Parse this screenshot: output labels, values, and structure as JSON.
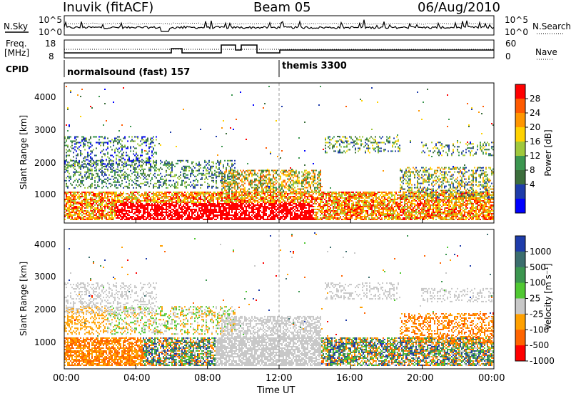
{
  "header": {
    "station": "Inuvik (fitACF)",
    "beam": "Beam 05",
    "date": "06/Aug/2010"
  },
  "left_labels": {
    "nsky": "N.Sky",
    "freq": "Freq.",
    "freq_unit": "[MHz]",
    "cpid": "CPID"
  },
  "right_labels": {
    "nsearch": "N.Search",
    "nave": "Nave"
  },
  "time_axis": {
    "label": "Time UT",
    "ticks": [
      "00:00",
      "04:00",
      "08:00",
      "12:00",
      "16:00",
      "20:00",
      "00:00"
    ]
  },
  "chart_data": [
    {
      "type": "line",
      "name": "noise",
      "left_ticks": [
        "10^5",
        "10^0"
      ],
      "right_ticks": [
        "10^5",
        "10^0"
      ]
    },
    {
      "type": "line",
      "name": "frequency-nave",
      "left_ticks": [
        "18",
        "8"
      ],
      "right_ticks": [
        "60",
        "0"
      ]
    },
    {
      "type": "table",
      "name": "cpid",
      "segments": [
        {
          "label": "normalsound (fast) 157",
          "start_hour": 0
        },
        {
          "label": "themis 3300",
          "start_hour": 12
        }
      ]
    },
    {
      "type": "heatmap",
      "name": "power",
      "ylabel": "Slant Range [km]",
      "yticks": [
        "4000",
        "3000",
        "2000",
        "1000"
      ],
      "ylim": [
        180,
        4500
      ],
      "colorbar": {
        "label": "Power [dB]",
        "ticks": [
          "28",
          "24",
          "20",
          "16",
          "12",
          "8",
          "4"
        ],
        "colors": [
          "#ff0000",
          "#ff5a00",
          "#ff9600",
          "#ffd200",
          "#a0c83c",
          "#3c9650",
          "#3c6e3c",
          "#1e3caa",
          "#0000ff"
        ]
      }
    },
    {
      "type": "heatmap",
      "name": "velocity",
      "ylabel": "Slant Range [km]",
      "yticks": [
        "4000",
        "3000",
        "2000",
        "1000"
      ],
      "ylim": [
        180,
        4500
      ],
      "colorbar": {
        "label": "Velocity [m s⁻¹]",
        "ticks": [
          "1000",
          "500",
          "100",
          "25",
          "-25",
          "-100",
          "-500",
          "-1000"
        ],
        "colors": [
          "#1e3caa",
          "#3c6e6e",
          "#3c9650",
          "#50c832",
          "#c8c8c8",
          "#ffa000",
          "#ff6400",
          "#ff0000"
        ]
      }
    }
  ]
}
